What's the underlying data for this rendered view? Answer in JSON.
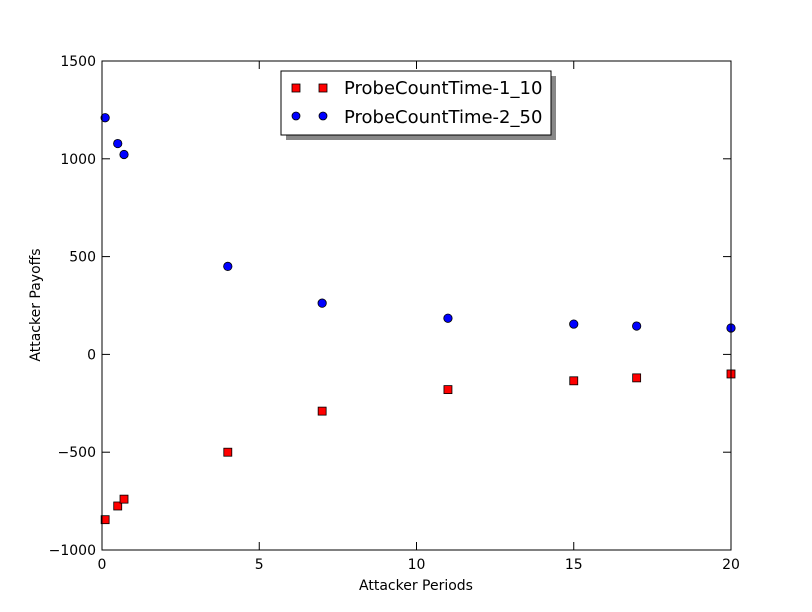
{
  "chart_data": {
    "type": "scatter",
    "xlabel": "Attacker Periods",
    "ylabel": "Attacker Payoffs",
    "xlim": [
      0,
      20
    ],
    "ylim": [
      -1000,
      1500
    ],
    "xticks": [
      0,
      5,
      10,
      15,
      20
    ],
    "yticks": [
      -1000,
      -500,
      0,
      500,
      1000,
      1500
    ],
    "xtick_labels": [
      "0",
      "5",
      "10",
      "15",
      "20"
    ],
    "ytick_labels": [
      "−1000",
      "−500",
      "0",
      "500",
      "1000",
      "1500"
    ],
    "grid": false,
    "legend": "top-center",
    "series": [
      {
        "name": "ProbeCountTime-1_10",
        "marker": "square",
        "color": "#ff0000",
        "x": [
          0.1,
          0.5,
          0.7,
          4,
          7,
          11,
          15,
          17,
          20
        ],
        "y": [
          -845,
          -775,
          -740,
          -500,
          -290,
          -180,
          -135,
          -120,
          -100
        ]
      },
      {
        "name": "ProbeCountTime-2_50",
        "marker": "circle",
        "color": "#0000ff",
        "x": [
          0.1,
          0.5,
          0.7,
          4,
          7,
          11,
          15,
          17,
          20
        ],
        "y": [
          1210,
          1078,
          1022,
          450,
          262,
          185,
          155,
          145,
          135
        ]
      }
    ]
  }
}
